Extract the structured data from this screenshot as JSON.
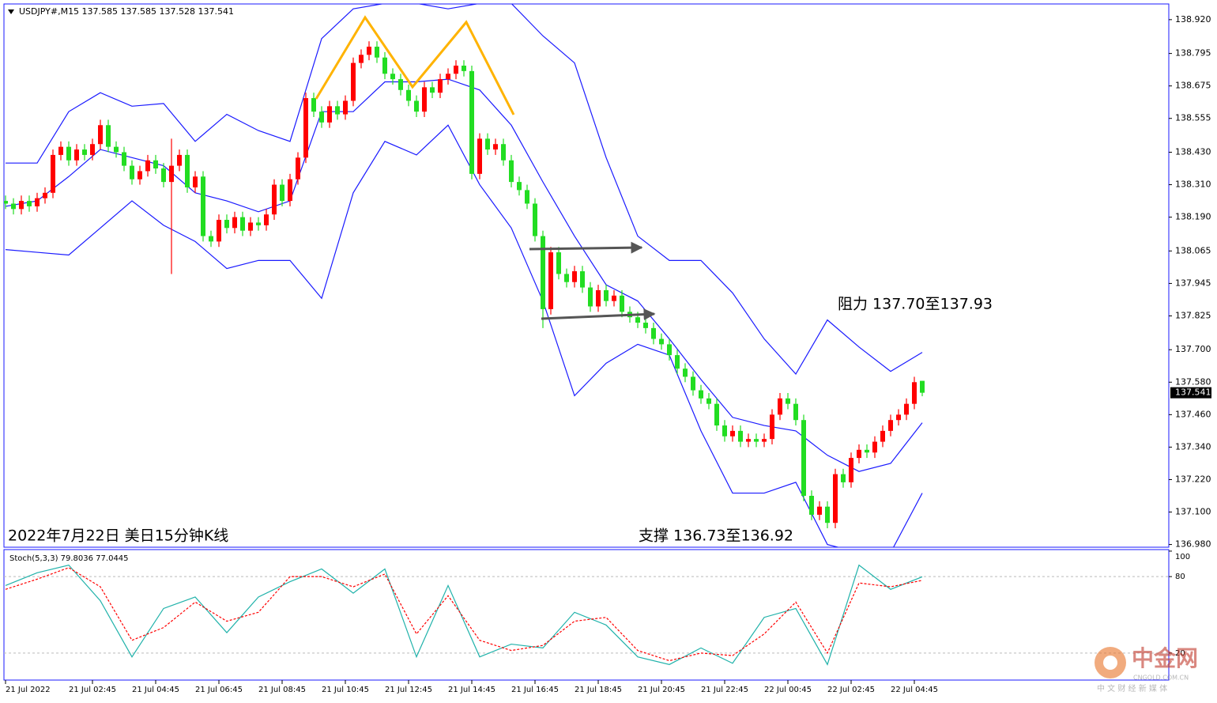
{
  "chart_data": [
    {
      "type": "candlestick",
      "title": "USDJPY#,M15  137.585 137.585 137.528 137.541",
      "annotations": [
        "阻力 137.70至137.93",
        "支撑 136.73至136.92",
        "2022年7月22日 美日15分钟K线"
      ],
      "last_price_label": "137.541",
      "up_color": "#ff0000",
      "down_color": "#22dd22",
      "candles": {
        "open": [
          138.25,
          138.24,
          138.22,
          138.25,
          138.23,
          138.26,
          138.28,
          138.42,
          138.45,
          138.4,
          138.44,
          138.42,
          138.46,
          138.53,
          138.45,
          138.43,
          138.38,
          138.33,
          138.36,
          138.4,
          138.37,
          138.32,
          138.38,
          138.42,
          138.3,
          138.34,
          138.12,
          138.1,
          138.18,
          138.15,
          138.19,
          138.14,
          138.17,
          138.16,
          138.2,
          138.31,
          138.25,
          138.33,
          138.41,
          138.63,
          138.58,
          138.54,
          138.6,
          138.57,
          138.62,
          138.76,
          138.79,
          138.82,
          138.78,
          138.72,
          138.7,
          138.66,
          138.62,
          138.58,
          138.67,
          138.65,
          138.7,
          138.72,
          138.75,
          138.73,
          138.35,
          138.48,
          138.44,
          138.46,
          138.4,
          138.32,
          138.29,
          138.24,
          138.12,
          137.85,
          138.06,
          137.98,
          137.95,
          137.99,
          137.93,
          137.86,
          137.92,
          137.88,
          137.9,
          137.84,
          137.82,
          137.8,
          137.78,
          137.74,
          137.72,
          137.68,
          137.63,
          137.6,
          137.55,
          137.52,
          137.5,
          137.42,
          137.38,
          137.4,
          137.36,
          137.37,
          137.36,
          137.37,
          137.46,
          137.52,
          137.5,
          137.44,
          137.16,
          137.09,
          137.12,
          137.06,
          137.24,
          137.21,
          137.3,
          137.33,
          137.32,
          137.36,
          137.4,
          137.44,
          137.46,
          137.5,
          137.585
        ],
        "high": [
          138.27,
          138.26,
          138.27,
          138.27,
          138.28,
          138.3,
          138.44,
          138.47,
          138.47,
          138.46,
          138.46,
          138.48,
          138.55,
          138.55,
          138.47,
          138.45,
          138.4,
          138.38,
          138.42,
          138.42,
          138.39,
          138.48,
          138.44,
          138.44,
          138.36,
          138.36,
          138.14,
          138.2,
          138.2,
          138.21,
          138.21,
          138.19,
          138.19,
          138.22,
          138.33,
          138.33,
          138.35,
          138.43,
          138.65,
          138.65,
          138.6,
          138.62,
          138.62,
          138.64,
          138.78,
          138.81,
          138.84,
          138.84,
          138.8,
          138.74,
          138.72,
          138.68,
          138.64,
          138.69,
          138.69,
          138.72,
          138.74,
          138.77,
          138.77,
          138.75,
          138.5,
          138.5,
          138.48,
          138.48,
          138.42,
          138.34,
          138.31,
          138.26,
          138.14,
          138.08,
          138.08,
          138.0,
          138.01,
          138.01,
          137.95,
          137.94,
          137.94,
          137.92,
          137.92,
          137.86,
          137.84,
          137.82,
          137.8,
          137.76,
          137.74,
          137.7,
          137.65,
          137.62,
          137.57,
          137.54,
          137.52,
          137.44,
          137.42,
          137.42,
          137.39,
          137.39,
          137.39,
          137.48,
          137.54,
          137.54,
          137.52,
          137.46,
          137.18,
          137.14,
          137.14,
          137.26,
          137.26,
          137.32,
          137.35,
          137.35,
          137.38,
          137.42,
          137.46,
          137.48,
          137.52,
          137.6,
          137.585
        ],
        "low": [
          138.22,
          138.2,
          138.2,
          138.21,
          138.21,
          138.24,
          138.26,
          138.4,
          138.38,
          138.38,
          138.4,
          138.4,
          138.44,
          138.43,
          138.41,
          138.36,
          138.31,
          138.31,
          138.34,
          138.35,
          138.3,
          137.98,
          138.36,
          138.28,
          138.28,
          138.1,
          138.08,
          138.08,
          138.13,
          138.13,
          138.12,
          138.12,
          138.14,
          138.14,
          138.18,
          138.23,
          138.23,
          138.31,
          138.39,
          138.56,
          138.52,
          138.52,
          138.55,
          138.55,
          138.6,
          138.74,
          138.77,
          138.76,
          138.7,
          138.68,
          138.64,
          138.6,
          138.56,
          138.56,
          138.63,
          138.63,
          138.68,
          138.7,
          138.71,
          138.33,
          138.33,
          138.42,
          138.42,
          138.38,
          138.3,
          138.27,
          138.22,
          138.1,
          137.78,
          137.83,
          137.96,
          137.93,
          137.93,
          137.91,
          137.84,
          137.84,
          137.86,
          137.86,
          137.82,
          137.8,
          137.78,
          137.76,
          137.72,
          137.7,
          137.66,
          137.61,
          137.58,
          137.53,
          137.5,
          137.48,
          137.4,
          137.36,
          137.36,
          137.34,
          137.34,
          137.34,
          137.34,
          137.35,
          137.44,
          137.48,
          137.42,
          137.14,
          137.07,
          137.07,
          137.04,
          137.04,
          137.19,
          137.19,
          137.28,
          137.3,
          137.3,
          137.34,
          137.38,
          137.42,
          137.44,
          137.48,
          137.528
        ],
        "close": [
          138.24,
          138.22,
          138.25,
          138.23,
          138.26,
          138.28,
          138.42,
          138.45,
          138.4,
          138.44,
          138.42,
          138.46,
          138.53,
          138.45,
          138.43,
          138.38,
          138.33,
          138.36,
          138.4,
          138.37,
          138.32,
          138.38,
          138.42,
          138.3,
          138.34,
          138.12,
          138.1,
          138.18,
          138.15,
          138.19,
          138.14,
          138.17,
          138.16,
          138.2,
          138.31,
          138.25,
          138.33,
          138.41,
          138.63,
          138.58,
          138.54,
          138.6,
          138.57,
          138.62,
          138.76,
          138.79,
          138.82,
          138.78,
          138.72,
          138.7,
          138.66,
          138.62,
          138.58,
          138.67,
          138.65,
          138.7,
          138.72,
          138.75,
          138.73,
          138.35,
          138.48,
          138.44,
          138.46,
          138.4,
          138.32,
          138.29,
          138.24,
          138.12,
          137.85,
          138.06,
          137.98,
          137.95,
          137.99,
          137.93,
          137.86,
          137.92,
          137.88,
          137.9,
          137.84,
          137.82,
          137.8,
          137.78,
          137.74,
          137.72,
          137.68,
          137.63,
          137.6,
          137.55,
          137.52,
          137.5,
          137.42,
          137.38,
          137.4,
          137.36,
          137.37,
          137.36,
          137.37,
          137.46,
          137.52,
          137.5,
          137.44,
          137.16,
          137.09,
          137.12,
          137.06,
          137.24,
          137.21,
          137.3,
          137.33,
          137.32,
          137.36,
          137.4,
          137.44,
          137.46,
          137.5,
          137.58,
          137.541
        ]
      },
      "bands": {
        "color": "#1a1aff",
        "x": [
          0,
          4,
          8,
          12,
          16,
          20,
          24,
          28,
          32,
          36,
          40,
          44,
          48,
          52,
          56,
          60,
          64,
          68,
          72,
          76,
          80,
          84,
          88,
          92,
          96,
          100,
          104,
          108,
          112,
          116
        ],
        "upper": [
          138.39,
          138.39,
          138.58,
          138.65,
          138.6,
          138.61,
          138.47,
          138.57,
          138.51,
          138.47,
          138.85,
          138.96,
          138.98,
          138.98,
          138.96,
          138.98,
          138.98,
          138.86,
          138.76,
          138.41,
          138.12,
          138.03,
          138.03,
          137.91,
          137.74,
          137.61,
          137.81,
          137.71,
          137.62,
          137.69
        ],
        "middle": [
          138.23,
          138.25,
          138.34,
          138.44,
          138.41,
          138.38,
          138.28,
          138.25,
          138.21,
          138.25,
          138.58,
          138.58,
          138.69,
          138.69,
          138.7,
          138.66,
          138.53,
          138.32,
          138.12,
          137.94,
          137.88,
          137.74,
          137.59,
          137.45,
          137.42,
          137.4,
          137.31,
          137.25,
          137.28,
          137.43
        ],
        "lower": [
          138.07,
          138.06,
          138.05,
          138.15,
          138.25,
          138.16,
          138.1,
          138.0,
          138.03,
          138.03,
          137.89,
          138.28,
          138.47,
          138.42,
          138.53,
          138.31,
          138.15,
          137.88,
          137.53,
          137.65,
          137.72,
          137.68,
          137.4,
          137.17,
          137.17,
          137.21,
          136.98,
          136.95,
          136.95,
          137.17
        ]
      },
      "ylim": [
        136.97,
        138.978
      ],
      "yticks": [
        {
          "value": 138.92,
          "label": "138.920"
        },
        {
          "value": 138.795,
          "label": "138.795"
        },
        {
          "value": 138.675,
          "label": "138.675"
        },
        {
          "value": 138.555,
          "label": "138.555"
        },
        {
          "value": 138.43,
          "label": "138.430"
        },
        {
          "value": 138.31,
          "label": "138.310"
        },
        {
          "value": 138.19,
          "label": "138.190"
        },
        {
          "value": 138.065,
          "label": "138.065"
        },
        {
          "value": 137.945,
          "label": "137.945"
        },
        {
          "value": 137.825,
          "label": "137.825"
        },
        {
          "value": 137.7,
          "label": "137.700"
        },
        {
          "value": 137.58,
          "label": "137.580"
        },
        {
          "value": 137.46,
          "label": "137.460"
        },
        {
          "value": 137.34,
          "label": "137.340"
        },
        {
          "value": 137.22,
          "label": "137.220"
        },
        {
          "value": 137.1,
          "label": "137.100"
        },
        {
          "value": 136.98,
          "label": "136.980"
        }
      ],
      "xlim": [
        -0.2,
        147.2
      ],
      "xticks": [
        {
          "value": 0,
          "label": "21 Jul 2022"
        },
        {
          "value": 11,
          "label": "21 Jul 02:45"
        },
        {
          "value": 19,
          "label": "21 Jul 04:45"
        },
        {
          "value": 27,
          "label": "21 Jul 06:45"
        },
        {
          "value": 35,
          "label": "21 Jul 08:45"
        },
        {
          "value": 43,
          "label": "21 Jul 10:45"
        },
        {
          "value": 51,
          "label": "21 Jul 12:45"
        },
        {
          "value": 59,
          "label": "21 Jul 14:45"
        },
        {
          "value": 67,
          "label": "21 Jul 16:45"
        },
        {
          "value": 75,
          "label": "21 Jul 18:45"
        },
        {
          "value": 83,
          "label": "21 Jul 20:45"
        },
        {
          "value": 91,
          "label": "21 Jul 22:45"
        },
        {
          "value": 99,
          "label": "22 Jul 00:45"
        },
        {
          "value": 107,
          "label": "22 Jul 02:45"
        },
        {
          "value": 115,
          "label": "22 Jul 04:45"
        }
      ]
    },
    {
      "type": "line",
      "title": "Stoch(5,3,3) 79.8036 77.0445",
      "x": [
        0,
        4,
        8,
        12,
        16,
        20,
        24,
        28,
        32,
        36,
        40,
        44,
        48,
        52,
        56,
        60,
        64,
        68,
        72,
        76,
        80,
        84,
        88,
        92,
        96,
        100,
        104,
        108,
        112,
        116
      ],
      "series": [
        {
          "color": "#20b2aa",
          "values": [
            73,
            83,
            89,
            61,
            17,
            55,
            64,
            36,
            64,
            76,
            86,
            67,
            86,
            17,
            73,
            17,
            27,
            24,
            52,
            42,
            17,
            11,
            24,
            12,
            48,
            55,
            11,
            89,
            70,
            79.8036
          ]
        },
        {
          "color": "#ff0000",
          "dashed": true,
          "values": [
            70,
            78,
            87,
            72,
            30,
            40,
            60,
            45,
            52,
            80,
            80,
            72,
            82,
            35,
            65,
            30,
            22,
            26,
            45,
            48,
            22,
            14,
            20,
            18,
            35,
            60,
            20,
            75,
            72,
            77.0445
          ]
        }
      ],
      "ylim": [
        -1.2,
        101.2
      ],
      "yticks": [
        100,
        80,
        20
      ],
      "grid": [
        80,
        20
      ]
    }
  ],
  "watermark": {
    "name": "中金网",
    "domain": "CNGOLD.COM.CN",
    "slogan": "中 文 财 经 新 媒 体"
  }
}
